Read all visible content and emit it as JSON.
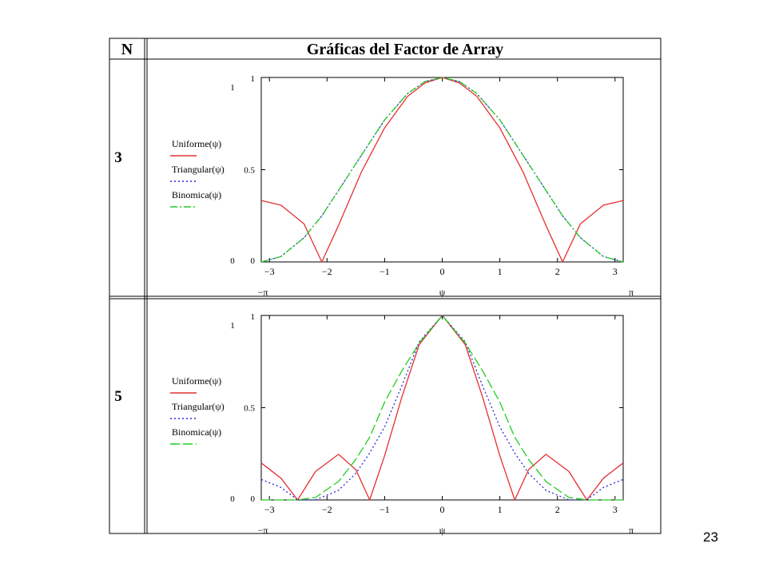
{
  "table": {
    "header_n": "N",
    "header_title": "Gráficas del Factor de Array"
  },
  "page_number": "23",
  "chart_data": [
    {
      "type": "line",
      "row_label": "3",
      "xlabel": "ψ",
      "xlim": [
        -3.1416,
        3.1416
      ],
      "ylim": [
        0,
        1
      ],
      "x_tick_labels": [
        "−3",
        "−2",
        "−1",
        "0",
        "1",
        "2",
        "3"
      ],
      "x_tick_values": [
        -3,
        -2,
        -1,
        0,
        1,
        2,
        3
      ],
      "x_range_labels": [
        "−π",
        "π"
      ],
      "y_tick_labels": [
        "0",
        "0.5",
        "1"
      ],
      "y_tick_values": [
        0,
        0.5,
        1
      ],
      "y_range_labels": [
        "0",
        "1"
      ],
      "grid": false,
      "legend_position": "left",
      "x": [
        -3.14,
        -2.8,
        -2.4,
        -2.09,
        -1.8,
        -1.4,
        -1.0,
        -0.6,
        -0.3,
        0,
        0.3,
        0.6,
        1.0,
        1.4,
        1.8,
        2.09,
        2.4,
        2.8,
        3.14
      ],
      "series": [
        {
          "name": "Uniforme(ψ)",
          "color": "#e53030",
          "dash": "solid",
          "values": [
            0.333,
            0.308,
            0.207,
            0.0,
            0.198,
            0.49,
            0.727,
            0.898,
            0.97,
            1.0,
            0.97,
            0.898,
            0.727,
            0.49,
            0.198,
            0.0,
            0.207,
            0.308,
            0.333
          ]
        },
        {
          "name": "Triangular(ψ)",
          "color": "#2a2ad8",
          "dash": "2,3",
          "values": [
            0.0,
            0.029,
            0.131,
            0.25,
            0.388,
            0.58,
            0.77,
            0.913,
            0.978,
            1.0,
            0.978,
            0.913,
            0.77,
            0.58,
            0.388,
            0.25,
            0.131,
            0.029,
            0.0
          ]
        },
        {
          "name": "Binomica(ψ)",
          "color": "#22cc22",
          "dash": "9,3,2,3",
          "values": [
            0.0,
            0.029,
            0.131,
            0.25,
            0.388,
            0.58,
            0.77,
            0.913,
            0.978,
            1.0,
            0.978,
            0.913,
            0.77,
            0.58,
            0.388,
            0.25,
            0.131,
            0.029,
            0.0
          ]
        }
      ]
    },
    {
      "type": "line",
      "row_label": "5",
      "xlabel": "ψ",
      "xlim": [
        -3.1416,
        3.1416
      ],
      "ylim": [
        0,
        1
      ],
      "x_tick_labels": [
        "−3",
        "−2",
        "−1",
        "0",
        "1",
        "2",
        "3"
      ],
      "x_tick_values": [
        -3,
        -2,
        -1,
        0,
        1,
        2,
        3
      ],
      "x_range_labels": [
        "−π",
        "π"
      ],
      "y_tick_labels": [
        "0",
        "0.5",
        "1"
      ],
      "y_tick_values": [
        0,
        0.5,
        1
      ],
      "y_range_labels": [
        "0",
        "1"
      ],
      "grid": false,
      "legend_position": "left",
      "x": [
        -3.14,
        -2.8,
        -2.51,
        -2.2,
        -1.8,
        -1.5,
        -1.26,
        -1.0,
        -0.7,
        -0.4,
        0,
        0.4,
        0.7,
        1.0,
        1.26,
        1.5,
        1.8,
        2.2,
        2.51,
        2.8,
        3.14
      ],
      "series": [
        {
          "name": "Uniforme(ψ)",
          "color": "#e53030",
          "dash": "solid",
          "values": [
            0.2,
            0.118,
            0.0,
            0.154,
            0.247,
            0.164,
            0.0,
            0.24,
            0.558,
            0.842,
            1.0,
            0.842,
            0.558,
            0.24,
            0.0,
            0.164,
            0.247,
            0.154,
            0.0,
            0.118,
            0.2
          ]
        },
        {
          "name": "Triangular(ψ)",
          "color": "#2a2ad8",
          "dash": "2,3",
          "values": [
            0.111,
            0.068,
            0.0,
            0.0,
            0.052,
            0.144,
            0.254,
            0.396,
            0.619,
            0.857,
            1.0,
            0.857,
            0.619,
            0.396,
            0.254,
            0.144,
            0.052,
            0.0,
            0.0,
            0.068,
            0.111
          ]
        },
        {
          "name": "Binomica(ψ)",
          "color": "#22cc22",
          "dash": "12,4",
          "values": [
            0.0,
            0.0,
            0.0,
            0.013,
            0.1,
            0.22,
            0.34,
            0.53,
            0.7,
            0.85,
            1.0,
            0.85,
            0.7,
            0.53,
            0.34,
            0.22,
            0.1,
            0.013,
            0.0,
            0.0,
            0.0
          ]
        }
      ]
    }
  ]
}
